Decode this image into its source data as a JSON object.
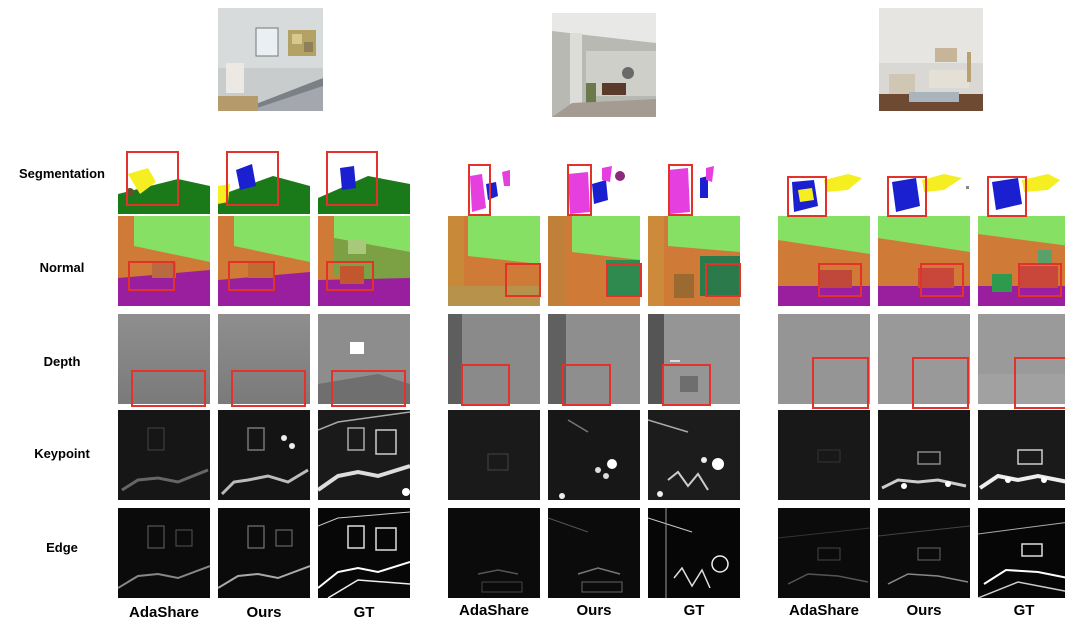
{
  "row_labels": [
    "Segmentation",
    "Normal",
    "Depth",
    "Keypoint",
    "Edge"
  ],
  "column_labels": [
    "AdaShare",
    "Ours",
    "GT"
  ],
  "scenes": [
    {
      "name": "bedroom"
    },
    {
      "name": "dining-room"
    },
    {
      "name": "living-room"
    }
  ],
  "colors": {
    "highlight_box": "#e3322a",
    "segmentation_green": "#1a7a1a",
    "segmentation_yellow": "#f5ee20",
    "segmentation_blue": "#1a1fd0",
    "segmentation_magenta": "#e53fe0",
    "normal_green": "#86e064",
    "normal_orange": "#d07a38",
    "normal_purple": "#9a1f9f",
    "depth_gray": "#9b9b9b",
    "edge_black": "#0b0b0b"
  }
}
